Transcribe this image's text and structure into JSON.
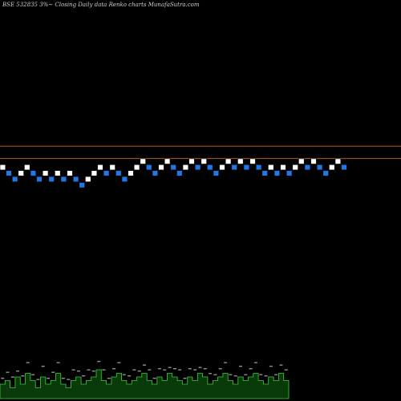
{
  "title": "BSE 532835 3%~  Closing Daily data  Renko  charts MunafaSutra.com",
  "colors": {
    "background": "#000000",
    "up_brick": "#ffffff",
    "down_brick": "#1f77e8",
    "level_line": "#b0620f",
    "volume_fill": "#0a3a0a",
    "volume_edge": "#3cd13c",
    "volume_label": "#cfcfcf"
  },
  "chart_data": {
    "type": "renko",
    "title": "BSE 532835 3%~  Closing Daily data  Renko  charts MunafaSutra.com",
    "grid": false,
    "bricks": [
      {
        "dir": "up",
        "level": 0
      },
      {
        "dir": "down",
        "level": -1
      },
      {
        "dir": "down",
        "level": -2
      },
      {
        "dir": "up",
        "level": -1
      },
      {
        "dir": "up",
        "level": 0
      },
      {
        "dir": "down",
        "level": -1
      },
      {
        "dir": "down",
        "level": -2
      },
      {
        "dir": "up",
        "level": -1
      },
      {
        "dir": "down",
        "level": -2
      },
      {
        "dir": "up",
        "level": -1
      },
      {
        "dir": "down",
        "level": -2
      },
      {
        "dir": "up",
        "level": -1
      },
      {
        "dir": "down",
        "level": -2
      },
      {
        "dir": "down",
        "level": -3
      },
      {
        "dir": "up",
        "level": -2
      },
      {
        "dir": "up",
        "level": -1
      },
      {
        "dir": "up",
        "level": 0
      },
      {
        "dir": "down",
        "level": -1
      },
      {
        "dir": "up",
        "level": 0
      },
      {
        "dir": "down",
        "level": -1
      },
      {
        "dir": "down",
        "level": -2
      },
      {
        "dir": "up",
        "level": -1
      },
      {
        "dir": "up",
        "level": 0
      },
      {
        "dir": "up",
        "level": 1
      },
      {
        "dir": "down",
        "level": 0
      },
      {
        "dir": "down",
        "level": -1
      },
      {
        "dir": "up",
        "level": 0
      },
      {
        "dir": "up",
        "level": 1
      },
      {
        "dir": "down",
        "level": 0
      },
      {
        "dir": "down",
        "level": -1
      },
      {
        "dir": "up",
        "level": 0
      },
      {
        "dir": "up",
        "level": 1
      },
      {
        "dir": "down",
        "level": 0
      },
      {
        "dir": "up",
        "level": 1
      },
      {
        "dir": "down",
        "level": 0
      },
      {
        "dir": "down",
        "level": -1
      },
      {
        "dir": "up",
        "level": 0
      },
      {
        "dir": "up",
        "level": 1
      },
      {
        "dir": "down",
        "level": 0
      },
      {
        "dir": "up",
        "level": 1
      },
      {
        "dir": "down",
        "level": 0
      },
      {
        "dir": "up",
        "level": 1
      },
      {
        "dir": "down",
        "level": 0
      },
      {
        "dir": "down",
        "level": -1
      },
      {
        "dir": "up",
        "level": 0
      },
      {
        "dir": "down",
        "level": -1
      },
      {
        "dir": "up",
        "level": 0
      },
      {
        "dir": "down",
        "level": -1
      },
      {
        "dir": "up",
        "level": 0
      },
      {
        "dir": "up",
        "level": 1
      },
      {
        "dir": "down",
        "level": 0
      },
      {
        "dir": "up",
        "level": 1
      },
      {
        "dir": "down",
        "level": 0
      },
      {
        "dir": "down",
        "level": -1
      },
      {
        "dir": "up",
        "level": 0
      },
      {
        "dir": "up",
        "level": 1
      },
      {
        "dir": "down",
        "level": 0
      }
    ],
    "reference_levels": [
      2.5,
      0.5
    ],
    "volume": [
      4,
      5,
      3,
      6,
      4,
      7,
      5,
      3,
      6,
      4,
      5,
      7,
      4,
      3,
      5,
      6,
      4,
      5,
      6,
      8,
      5,
      4,
      6,
      7,
      5,
      4,
      5,
      6,
      7,
      5,
      4,
      6,
      5,
      7,
      6,
      5,
      4,
      6,
      5,
      7,
      6,
      4,
      5,
      6,
      7,
      5,
      4,
      6,
      5,
      6,
      7,
      5,
      4,
      6,
      5,
      7,
      5
    ]
  }
}
